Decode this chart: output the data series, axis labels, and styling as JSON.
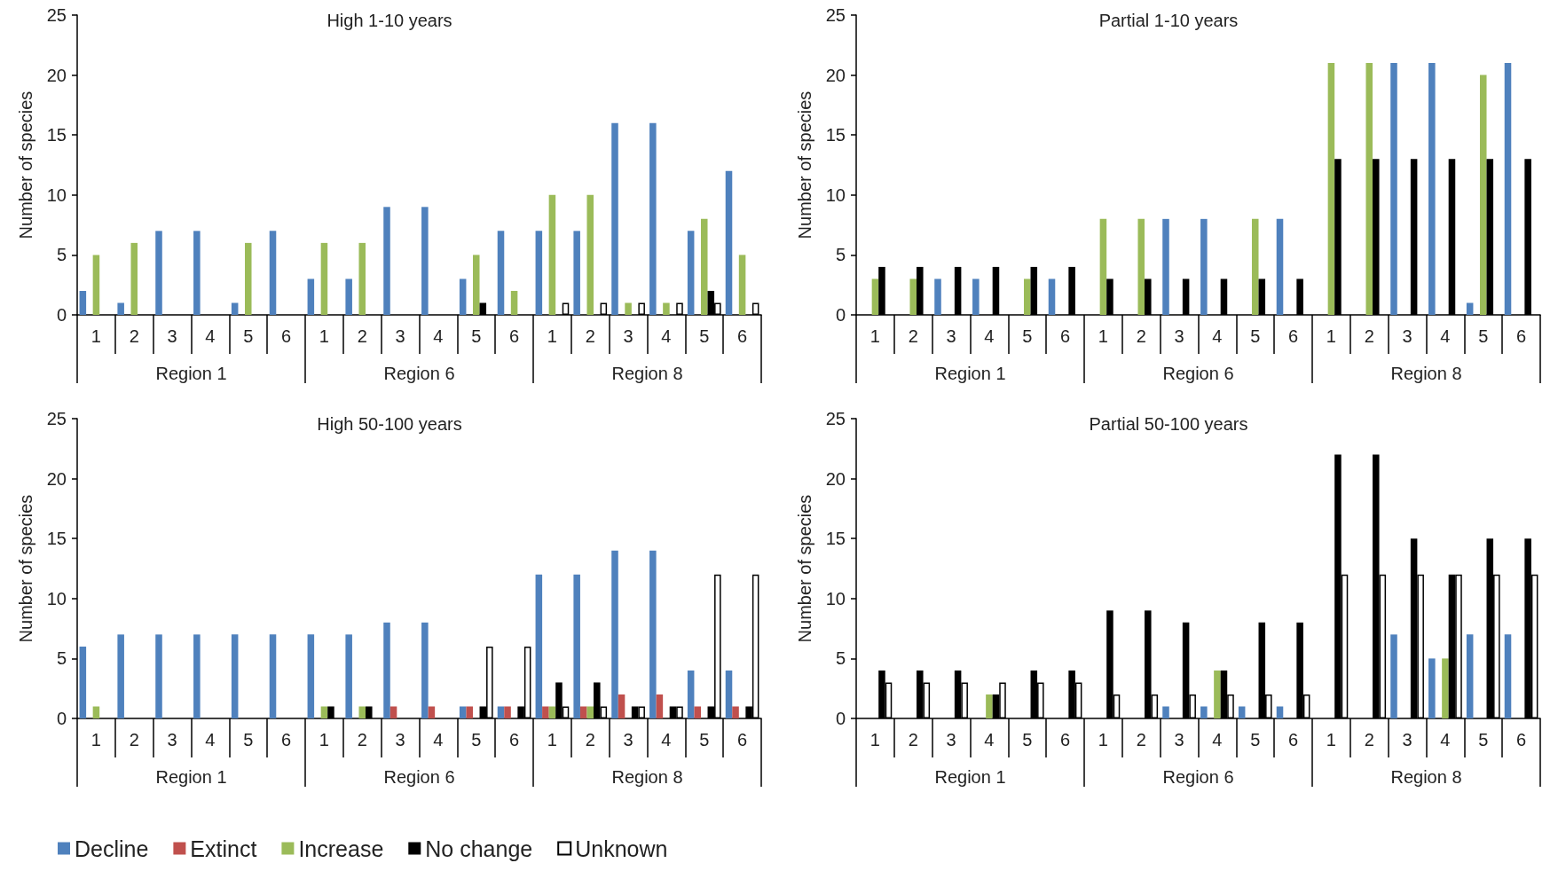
{
  "chart_data": [
    {
      "type": "bar",
      "title": "High 1-10 years",
      "ylabel": "Number of species",
      "categories": [
        "1",
        "2",
        "3",
        "4",
        "5",
        "6",
        "1",
        "2",
        "3",
        "4",
        "5",
        "6",
        "1",
        "2",
        "3",
        "4",
        "5",
        "6"
      ],
      "annotations": [
        "Region 1",
        "Region 6",
        "Region 8"
      ],
      "ylim": [
        0,
        25
      ],
      "yticks": [
        0,
        5,
        10,
        15,
        20,
        25
      ],
      "grid": false,
      "series": [
        {
          "color": "#4f81bd",
          "values": [
            2,
            1,
            7,
            7,
            1,
            7,
            3,
            3,
            9,
            9,
            3,
            7,
            7,
            7,
            16,
            16,
            7,
            12
          ]
        },
        {
          "color": "#c0504d",
          "values": [
            0,
            0,
            0,
            0,
            0,
            0,
            0,
            0,
            0,
            0,
            0,
            0,
            0,
            0,
            0,
            0,
            0,
            0
          ]
        },
        {
          "color": "#9bbb59",
          "values": [
            5,
            6,
            0,
            0,
            6,
            0,
            6,
            6,
            0,
            0,
            5,
            2,
            10,
            10,
            1,
            1,
            8,
            5
          ]
        },
        {
          "color": "#000000",
          "values": [
            0,
            0,
            0,
            0,
            0,
            0,
            0,
            0,
            0,
            0,
            1,
            0,
            0,
            0,
            0,
            0,
            2,
            0
          ]
        },
        {
          "color": "#ffffff",
          "values": [
            0,
            0,
            0,
            0,
            0,
            0,
            0,
            0,
            0,
            0,
            0,
            0,
            1,
            1,
            1,
            1,
            1,
            1
          ]
        }
      ]
    },
    {
      "type": "bar",
      "title": "Partial 1-10 years",
      "ylabel": "Number of species",
      "categories": [
        "1",
        "2",
        "3",
        "4",
        "5",
        "6",
        "1",
        "2",
        "3",
        "4",
        "5",
        "6",
        "1",
        "2",
        "3",
        "4",
        "5",
        "6"
      ],
      "annotations": [
        "Region 1",
        "Region 6",
        "Region 8"
      ],
      "ylim": [
        0,
        25
      ],
      "yticks": [
        0,
        5,
        10,
        15,
        20,
        25
      ],
      "grid": false,
      "series": [
        {
          "color": "#4f81bd",
          "values": [
            0,
            0,
            3,
            3,
            0,
            3,
            0,
            0,
            8,
            8,
            0,
            8,
            0,
            0,
            21,
            21,
            1,
            21
          ]
        },
        {
          "color": "#c0504d",
          "values": [
            0,
            0,
            0,
            0,
            0,
            0,
            0,
            0,
            0,
            0,
            0,
            0,
            0,
            0,
            0,
            0,
            0,
            0
          ]
        },
        {
          "color": "#9bbb59",
          "values": [
            3,
            3,
            0,
            0,
            3,
            0,
            8,
            8,
            0,
            0,
            8,
            0,
            21,
            21,
            0,
            0,
            20,
            0
          ]
        },
        {
          "color": "#000000",
          "values": [
            4,
            4,
            4,
            4,
            4,
            4,
            3,
            3,
            3,
            3,
            3,
            3,
            13,
            13,
            13,
            13,
            13,
            13
          ]
        },
        {
          "color": "#ffffff",
          "values": [
            0,
            0,
            0,
            0,
            0,
            0,
            0,
            0,
            0,
            0,
            0,
            0,
            0,
            0,
            0,
            0,
            0,
            0
          ]
        }
      ]
    },
    {
      "type": "bar",
      "title": "High 50-100 years",
      "ylabel": "Number of species",
      "categories": [
        "1",
        "2",
        "3",
        "4",
        "5",
        "6",
        "1",
        "2",
        "3",
        "4",
        "5",
        "6",
        "1",
        "2",
        "3",
        "4",
        "5",
        "6"
      ],
      "annotations": [
        "Region 1",
        "Region 6",
        "Region 8"
      ],
      "ylim": [
        0,
        25
      ],
      "yticks": [
        0,
        5,
        10,
        15,
        20,
        25
      ],
      "grid": false,
      "legend": "bottom left",
      "series": [
        {
          "name": "Decline",
          "color": "#4f81bd",
          "values": [
            6,
            7,
            7,
            7,
            7,
            7,
            7,
            7,
            8,
            8,
            1,
            1,
            12,
            12,
            14,
            14,
            4,
            4
          ]
        },
        {
          "name": "Extinct",
          "color": "#c0504d",
          "values": [
            0,
            0,
            0,
            0,
            0,
            0,
            0,
            0,
            1,
            1,
            1,
            1,
            1,
            1,
            2,
            2,
            1,
            1
          ]
        },
        {
          "name": "Increase",
          "color": "#9bbb59",
          "values": [
            1,
            0,
            0,
            0,
            0,
            0,
            1,
            1,
            0,
            0,
            0,
            0,
            1,
            1,
            0,
            0,
            0,
            0
          ]
        },
        {
          "name": "No change",
          "color": "#000000",
          "values": [
            0,
            0,
            0,
            0,
            0,
            0,
            1,
            1,
            0,
            0,
            1,
            1,
            3,
            3,
            1,
            1,
            1,
            1
          ]
        },
        {
          "name": "Unknown",
          "color": "#ffffff",
          "values": [
            0,
            0,
            0,
            0,
            0,
            0,
            0,
            0,
            0,
            0,
            6,
            6,
            1,
            1,
            1,
            1,
            12,
            12
          ]
        }
      ]
    },
    {
      "type": "bar",
      "title": "Partial 50-100 years",
      "ylabel": "Number of species",
      "categories": [
        "1",
        "2",
        "3",
        "4",
        "5",
        "6",
        "1",
        "2",
        "3",
        "4",
        "5",
        "6",
        "1",
        "2",
        "3",
        "4",
        "5",
        "6"
      ],
      "annotations": [
        "Region 1",
        "Region 6",
        "Region 8"
      ],
      "ylim": [
        0,
        25
      ],
      "yticks": [
        0,
        5,
        10,
        15,
        20,
        25
      ],
      "grid": false,
      "series": [
        {
          "color": "#4f81bd",
          "values": [
            0,
            0,
            0,
            0,
            0,
            0,
            0,
            0,
            1,
            1,
            1,
            1,
            0,
            0,
            7,
            5,
            7,
            7
          ]
        },
        {
          "color": "#c0504d",
          "values": [
            0,
            0,
            0,
            0,
            0,
            0,
            0,
            0,
            0,
            0,
            0,
            0,
            0,
            0,
            0,
            0,
            0,
            0
          ]
        },
        {
          "color": "#9bbb59",
          "values": [
            0,
            0,
            0,
            2,
            0,
            0,
            0,
            0,
            0,
            4,
            0,
            0,
            0,
            0,
            0,
            5,
            0,
            0
          ]
        },
        {
          "color": "#000000",
          "values": [
            4,
            4,
            4,
            2,
            4,
            4,
            9,
            9,
            8,
            4,
            8,
            8,
            22,
            22,
            15,
            12,
            15,
            15
          ]
        },
        {
          "color": "#ffffff",
          "values": [
            3,
            3,
            3,
            3,
            3,
            3,
            2,
            2,
            2,
            2,
            2,
            2,
            12,
            12,
            12,
            12,
            12,
            12
          ]
        }
      ]
    }
  ]
}
